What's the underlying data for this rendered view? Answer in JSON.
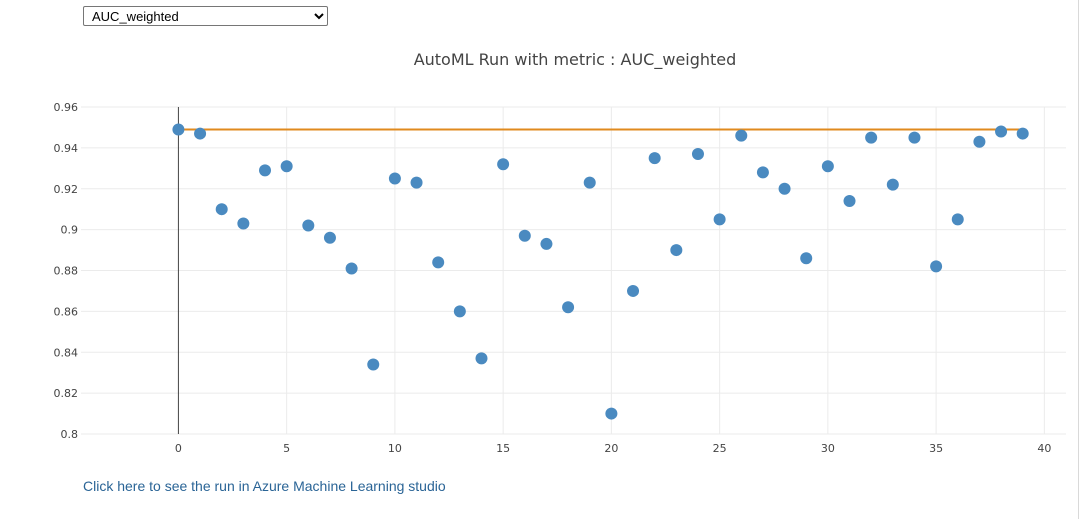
{
  "metric_select": {
    "selected": "AUC_weighted"
  },
  "link": {
    "text": "Click here to see the run in Azure Machine Learning studio"
  },
  "chart_data": {
    "type": "scatter",
    "title": "AutoML Run with metric : AUC_weighted",
    "xlabel": "",
    "ylabel": "",
    "xlim": [
      -4.5,
      41
    ],
    "ylim": [
      0.8,
      0.96
    ],
    "xticks": [
      0,
      5,
      10,
      15,
      20,
      25,
      30,
      35,
      40
    ],
    "yticks": [
      0.8,
      0.82,
      0.84,
      0.86,
      0.88,
      0.9,
      0.92,
      0.94,
      0.96
    ],
    "ytick_labels": [
      "0.8",
      "0.82",
      "0.84",
      "0.86",
      "0.88",
      "0.9",
      "0.92",
      "0.94",
      "0.96"
    ],
    "grid": true,
    "legend": "none",
    "series": [
      {
        "type": "scatter",
        "color": "#4a8ac0",
        "x": [
          0,
          1,
          2,
          3,
          4,
          5,
          6,
          7,
          8,
          9,
          10,
          11,
          12,
          13,
          14,
          15,
          16,
          17,
          18,
          19,
          20,
          21,
          22,
          23,
          24,
          25,
          26,
          27,
          28,
          29,
          30,
          31,
          32,
          33,
          34,
          35,
          36,
          37,
          38,
          39
        ],
        "y": [
          0.949,
          0.947,
          0.91,
          0.903,
          0.929,
          0.931,
          0.902,
          0.896,
          0.881,
          0.834,
          0.925,
          0.923,
          0.884,
          0.86,
          0.837,
          0.932,
          0.897,
          0.893,
          0.862,
          0.923,
          0.81,
          0.87,
          0.935,
          0.89,
          0.937,
          0.905,
          0.946,
          0.928,
          0.92,
          0.886,
          0.931,
          0.914,
          0.945,
          0.922,
          0.945,
          0.882,
          0.905,
          0.943,
          0.948,
          0.947
        ]
      },
      {
        "type": "line",
        "color": "#e08a1e",
        "x": [
          0,
          39
        ],
        "y": [
          0.949,
          0.949
        ]
      }
    ]
  }
}
